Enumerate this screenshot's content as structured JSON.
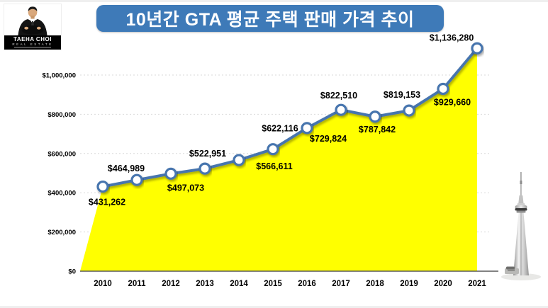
{
  "title": "10년간 GTA 평균 주택 판매 가격 추이",
  "logo": {
    "name": "TAEHA CHOI",
    "subtitle": "REAL ESTATE"
  },
  "colors": {
    "title_bg": "#3e7ab8",
    "line": "#4674ae",
    "area_fill": "#ffff00",
    "marker_fill": "#ffffff",
    "grid": "#d9d9d9",
    "axis": "#595959",
    "label_text": "#000000"
  },
  "chart_data": {
    "type": "area",
    "title": "10년간 GTA 평균 주택 판매 가격 추이",
    "categories": [
      "2010",
      "2011",
      "2012",
      "2013",
      "2014",
      "2015",
      "2016",
      "2017",
      "2018",
      "2019",
      "2020",
      "2021"
    ],
    "values": [
      431262,
      464989,
      497073,
      522951,
      566611,
      622116,
      729824,
      822510,
      787842,
      819153,
      929660,
      1136280
    ],
    "point_labels": [
      "$431,262",
      "$464,989",
      "$497,073",
      "$522,951",
      "$566,611",
      "$622,116",
      "$729,824",
      "$822,510",
      "$787,842",
      "$819,153",
      "$929,660",
      "$1,136,280"
    ],
    "y_ticks": [
      {
        "value": 0,
        "label": "$0"
      },
      {
        "value": 200000,
        "label": "$200,000"
      },
      {
        "value": 400000,
        "label": "$400,000"
      },
      {
        "value": 600000,
        "label": "$600,000"
      },
      {
        "value": 800000,
        "label": "$800,000"
      },
      {
        "value": 1000000,
        "label": "$1,000,000"
      }
    ],
    "ylim": [
      0,
      1160000
    ],
    "xlabel": "",
    "ylabel": "",
    "grid": "horizontal-dashed",
    "legend": "none"
  }
}
